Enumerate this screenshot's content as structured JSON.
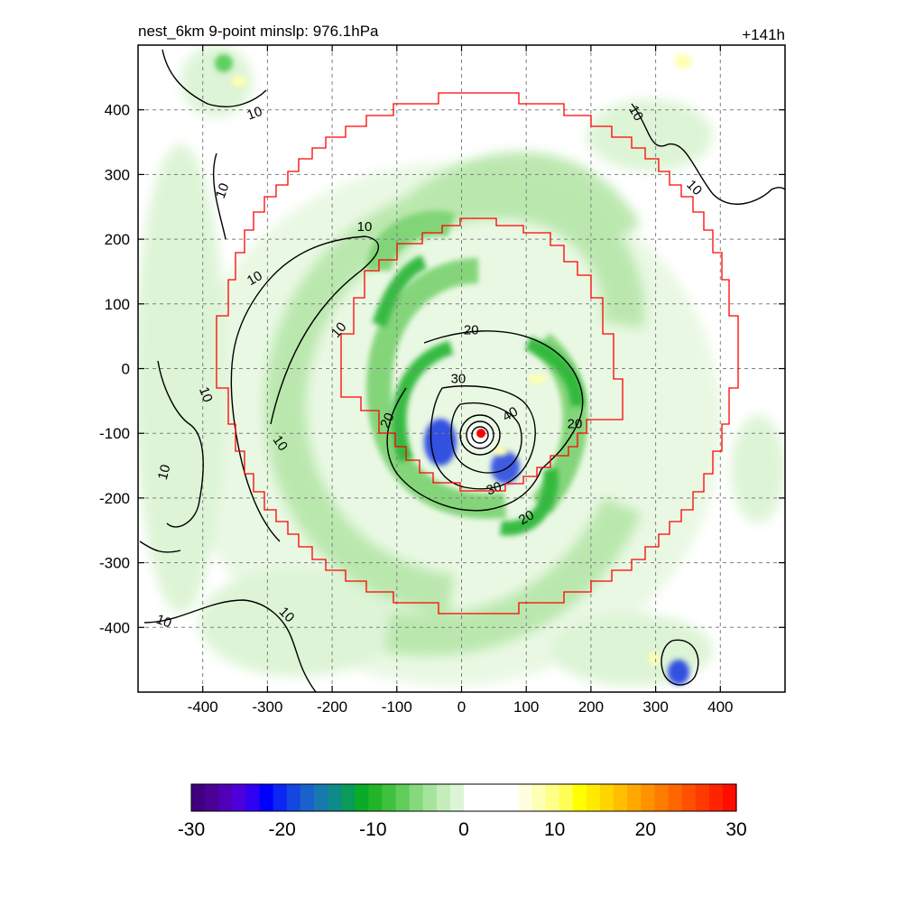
{
  "chart_data": {
    "type": "heatmap",
    "title": "nest_6km  9-point minslp: 976.1hPa",
    "time_label": "+141h",
    "x_ticks": [
      -400,
      -300,
      -200,
      -100,
      0,
      100,
      200,
      300,
      400
    ],
    "y_ticks": [
      400,
      300,
      200,
      100,
      0,
      -100,
      -200,
      -300,
      -400
    ],
    "xlim": [
      -500,
      500
    ],
    "ylim": [
      -500,
      500
    ],
    "grid": true,
    "storm_center": {
      "x": 30,
      "y": -100
    },
    "contour_labels": [
      {
        "text": "10",
        "x": -320,
        "y": 395,
        "rot": -20
      },
      {
        "text": "10",
        "x": -370,
        "y": 275,
        "rot": -70
      },
      {
        "text": "10",
        "x": -320,
        "y": 140,
        "rot": -30
      },
      {
        "text": "10",
        "x": -190,
        "y": 60,
        "rot": -50
      },
      {
        "text": "10",
        "x": -395,
        "y": -40,
        "rot": 70
      },
      {
        "text": "10",
        "x": -280,
        "y": -115,
        "rot": 55
      },
      {
        "text": "10",
        "x": -460,
        "y": -160,
        "rot": -75
      },
      {
        "text": "10",
        "x": -270,
        "y": -380,
        "rot": 45
      },
      {
        "text": "10",
        "x": -460,
        "y": -390,
        "rot": 20
      },
      {
        "text": "10",
        "x": 270,
        "y": 395,
        "rot": 60
      },
      {
        "text": "10",
        "x": 360,
        "y": 280,
        "rot": 45
      },
      {
        "text": "10",
        "x": -150,
        "y": 220,
        "rot": 0
      },
      {
        "text": "20",
        "x": 15,
        "y": 60,
        "rot": 0
      },
      {
        "text": "20",
        "x": -115,
        "y": -80,
        "rot": -65
      },
      {
        "text": "20",
        "x": 175,
        "y": -85,
        "rot": 0
      },
      {
        "text": "20",
        "x": 100,
        "y": -230,
        "rot": -30
      },
      {
        "text": "30",
        "x": -5,
        "y": -15,
        "rot": 0
      },
      {
        "text": "30",
        "x": 50,
        "y": -185,
        "rot": -20
      },
      {
        "text": "40",
        "x": 75,
        "y": -70,
        "rot": -30
      }
    ],
    "colorbar": {
      "min": -30,
      "max": 30,
      "ticks": [
        -30,
        -20,
        -10,
        0,
        10,
        20,
        30
      ],
      "colors": [
        "#3f007f",
        "#4b0096",
        "#5200b8",
        "#4d00d9",
        "#3000f3",
        "#0000ff",
        "#0c26f4",
        "#1446e2",
        "#1a62cb",
        "#1878b0",
        "#0f8a8a",
        "#0a9a5a",
        "#0aab28",
        "#22b52a",
        "#3fc140",
        "#60cc5a",
        "#85d97b",
        "#a6e39c",
        "#c4edbb",
        "#ddf5d6",
        "#ffffff",
        "#ffffff",
        "#ffffff",
        "#ffffff",
        "#ffffe0",
        "#ffffb5",
        "#ffff88",
        "#ffff55",
        "#ffff00",
        "#ffea00",
        "#ffd400",
        "#ffbe00",
        "#ffa800",
        "#ff9200",
        "#ff7c00",
        "#ff6600",
        "#ff5000",
        "#ff3a00",
        "#ff2400",
        "#ff0e00"
      ]
    }
  }
}
